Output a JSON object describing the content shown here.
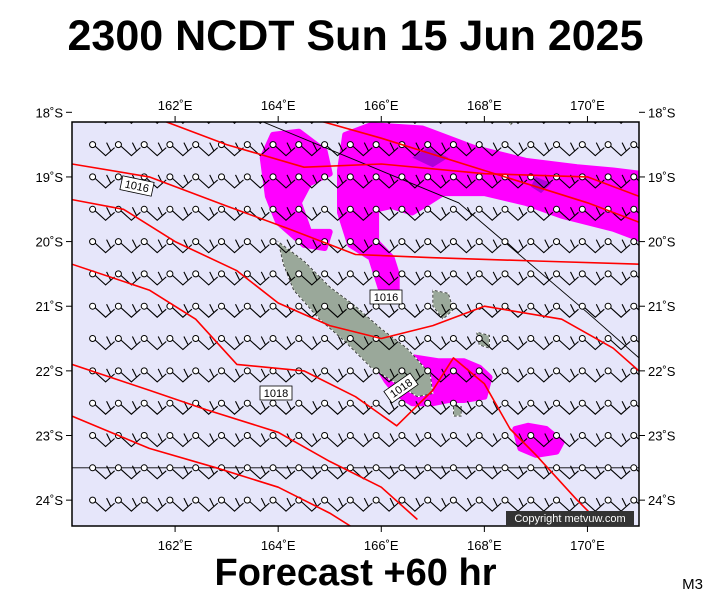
{
  "title": "2300 NCDT Sun 15 Jun 2025",
  "footer": "Forecast +60 hr",
  "model_code": "M3",
  "copyright": "Copyright metvuw.com",
  "colors": {
    "ocean": "#e6e6fa",
    "isobar": "#ff0000",
    "rain": "#ff00ff",
    "rain_heavy": "#b000d8",
    "land": "#9aa89a",
    "land_light": "#ffffff",
    "barb": "#000000"
  },
  "map": {
    "lon_range": [
      160.0,
      171.0
    ],
    "lat_range": [
      -24.4,
      -18.15
    ],
    "lon_ticks": [
      {
        "value": 162,
        "label": "162˚E"
      },
      {
        "value": 164,
        "label": "164˚E"
      },
      {
        "value": 166,
        "label": "166˚E"
      },
      {
        "value": 168,
        "label": "168˚E"
      },
      {
        "value": 170,
        "label": "170˚E"
      }
    ],
    "lat_ticks": [
      {
        "value": -18,
        "label": "18˚S"
      },
      {
        "value": -19,
        "label": "19˚S"
      },
      {
        "value": -20,
        "label": "20˚S"
      },
      {
        "value": -21,
        "label": "21˚S"
      },
      {
        "value": -22,
        "label": "22˚S"
      },
      {
        "value": -23,
        "label": "23˚S"
      },
      {
        "value": -24,
        "label": "24˚S"
      }
    ],
    "isobar_labels": [
      "1016",
      "1016",
      "1018",
      "1018"
    ],
    "isobars": [
      [
        [
          160.0,
          -17.25
        ],
        [
          162.0,
          -17.6
        ],
        [
          164.0,
          -17.95
        ],
        [
          166.0,
          -18.4
        ],
        [
          168.0,
          -18.9
        ],
        [
          170.0,
          -19.4
        ],
        [
          171.0,
          -19.7
        ]
      ],
      [
        [
          160.0,
          -18.05
        ],
        [
          161.5,
          -18.05
        ],
        [
          163.0,
          -18.5
        ],
        [
          164.5,
          -18.85
        ],
        [
          166.0,
          -18.8
        ],
        [
          168.0,
          -18.95
        ],
        [
          170.0,
          -19.0
        ],
        [
          171.0,
          -19.3
        ]
      ],
      [
        [
          160.0,
          -18.8
        ],
        [
          161.5,
          -19.0
        ],
        [
          163.0,
          -19.45
        ],
        [
          164.2,
          -19.8
        ],
        [
          165.5,
          -20.2
        ],
        [
          167.0,
          -20.25
        ],
        [
          169.0,
          -20.3
        ],
        [
          171.0,
          -20.35
        ]
      ],
      [
        [
          160.0,
          -19.35
        ],
        [
          161.0,
          -19.5
        ],
        [
          162.0,
          -20.0
        ],
        [
          163.2,
          -20.45
        ],
        [
          164.0,
          -20.95
        ],
        [
          165.0,
          -21.3
        ],
        [
          166.0,
          -21.5
        ],
        [
          167.0,
          -21.3
        ],
        [
          168.0,
          -21.0
        ],
        [
          169.5,
          -21.2
        ],
        [
          170.5,
          -21.65
        ],
        [
          171.0,
          -22.0
        ]
      ],
      [
        [
          160.0,
          -20.35
        ],
        [
          161.5,
          -20.75
        ],
        [
          162.4,
          -21.2
        ],
        [
          163.2,
          -21.9
        ],
        [
          164.5,
          -22.0
        ],
        [
          165.5,
          -22.4
        ],
        [
          166.3,
          -22.85
        ],
        [
          167.0,
          -22.3
        ],
        [
          167.4,
          -21.8
        ],
        [
          168.0,
          -22.2
        ],
        [
          168.5,
          -22.9
        ],
        [
          169.0,
          -23.3
        ],
        [
          169.8,
          -24.0
        ],
        [
          170.3,
          -24.4
        ]
      ],
      [
        [
          160.0,
          -21.9
        ],
        [
          161.5,
          -22.3
        ],
        [
          162.6,
          -22.6
        ],
        [
          164.0,
          -22.95
        ],
        [
          165.0,
          -23.4
        ],
        [
          166.0,
          -23.8
        ],
        [
          166.7,
          -24.3
        ]
      ],
      [
        [
          160.0,
          -22.7
        ],
        [
          161.5,
          -23.2
        ],
        [
          162.8,
          -23.5
        ],
        [
          164.0,
          -23.8
        ],
        [
          165.0,
          -24.2
        ],
        [
          165.4,
          -24.4
        ]
      ]
    ],
    "rain_areas": [
      [
        [
          163.7,
          -18.7
        ],
        [
          163.9,
          -18.35
        ],
        [
          164.4,
          -18.3
        ],
        [
          164.9,
          -18.6
        ],
        [
          165.0,
          -18.95
        ],
        [
          164.6,
          -19.1
        ],
        [
          164.4,
          -19.4
        ],
        [
          164.6,
          -19.85
        ],
        [
          165.0,
          -19.85
        ],
        [
          164.9,
          -20.1
        ],
        [
          164.5,
          -20.05
        ],
        [
          164.0,
          -19.7
        ],
        [
          163.8,
          -19.3
        ]
      ],
      [
        [
          165.3,
          -18.35
        ],
        [
          165.8,
          -18.2
        ],
        [
          166.8,
          -18.25
        ],
        [
          167.8,
          -18.55
        ],
        [
          168.8,
          -18.75
        ],
        [
          169.8,
          -18.85
        ],
        [
          170.5,
          -18.9
        ],
        [
          171.0,
          -18.95
        ],
        [
          171.0,
          -19.95
        ],
        [
          170.5,
          -19.8
        ],
        [
          169.5,
          -19.6
        ],
        [
          168.8,
          -19.4
        ],
        [
          168.0,
          -19.25
        ],
        [
          167.2,
          -19.25
        ],
        [
          166.9,
          -19.4
        ],
        [
          166.6,
          -19.55
        ],
        [
          166.2,
          -19.45
        ],
        [
          165.9,
          -19.5
        ],
        [
          165.9,
          -20.0
        ],
        [
          166.2,
          -20.25
        ],
        [
          166.3,
          -20.5
        ],
        [
          166.3,
          -20.75
        ],
        [
          166.0,
          -20.75
        ],
        [
          165.8,
          -20.25
        ],
        [
          165.4,
          -20.05
        ],
        [
          165.2,
          -19.55
        ],
        [
          165.2,
          -18.9
        ]
      ],
      [
        [
          166.0,
          -21.75
        ],
        [
          166.3,
          -21.75
        ],
        [
          167.1,
          -21.85
        ],
        [
          167.6,
          -21.85
        ],
        [
          167.9,
          -21.95
        ],
        [
          168.1,
          -22.1
        ],
        [
          168.0,
          -22.4
        ],
        [
          167.6,
          -22.45
        ],
        [
          167.3,
          -22.45
        ],
        [
          167.0,
          -22.5
        ],
        [
          166.6,
          -22.5
        ],
        [
          166.3,
          -22.35
        ],
        [
          166.1,
          -22.15
        ],
        [
          165.95,
          -21.95
        ]
      ],
      [
        [
          168.6,
          -22.9
        ],
        [
          168.85,
          -22.85
        ],
        [
          169.2,
          -22.9
        ],
        [
          169.5,
          -23.1
        ],
        [
          169.4,
          -23.25
        ],
        [
          169.0,
          -23.3
        ],
        [
          168.7,
          -23.2
        ]
      ]
    ],
    "rain_heavy_areas": [
      [
        [
          166.9,
          -18.55
        ],
        [
          167.3,
          -18.7
        ],
        [
          167.0,
          -18.85
        ],
        [
          166.6,
          -18.7
        ]
      ],
      [
        [
          169.0,
          -19.0
        ],
        [
          169.3,
          -19.1
        ],
        [
          169.1,
          -19.25
        ],
        [
          168.9,
          -19.15
        ]
      ]
    ],
    "land_areas": [
      [
        [
          164.0,
          -20.0
        ],
        [
          164.5,
          -20.3
        ],
        [
          165.0,
          -20.7
        ],
        [
          165.5,
          -21.0
        ],
        [
          166.0,
          -21.35
        ],
        [
          166.5,
          -21.65
        ],
        [
          166.95,
          -22.05
        ],
        [
          167.0,
          -22.35
        ],
        [
          166.7,
          -22.4
        ],
        [
          166.3,
          -22.2
        ],
        [
          165.8,
          -21.95
        ],
        [
          165.3,
          -21.55
        ],
        [
          164.8,
          -21.2
        ],
        [
          164.3,
          -20.75
        ],
        [
          164.1,
          -20.35
        ]
      ],
      [
        [
          167.0,
          -20.75
        ],
        [
          167.3,
          -20.8
        ],
        [
          167.4,
          -21.05
        ],
        [
          167.2,
          -21.2
        ],
        [
          167.0,
          -21.0
        ]
      ],
      [
        [
          167.85,
          -21.4
        ],
        [
          168.1,
          -21.45
        ],
        [
          168.1,
          -21.65
        ],
        [
          167.9,
          -21.6
        ]
      ],
      [
        [
          167.4,
          -22.55
        ],
        [
          167.55,
          -22.55
        ],
        [
          167.55,
          -22.7
        ],
        [
          167.4,
          -22.7
        ]
      ],
      [
        [
          168.4,
          -17.95
        ],
        [
          168.6,
          -17.85
        ],
        [
          168.7,
          -18.05
        ],
        [
          168.5,
          -18.2
        ]
      ]
    ],
    "eez_lines": [
      [
        [
          162.8,
          -17.85
        ],
        [
          167.5,
          -19.4
        ],
        [
          170.0,
          -21.1
        ],
        [
          171.0,
          -21.8
        ]
      ],
      [
        [
          160.0,
          -23.5
        ],
        [
          171.0,
          -23.5
        ]
      ]
    ]
  }
}
